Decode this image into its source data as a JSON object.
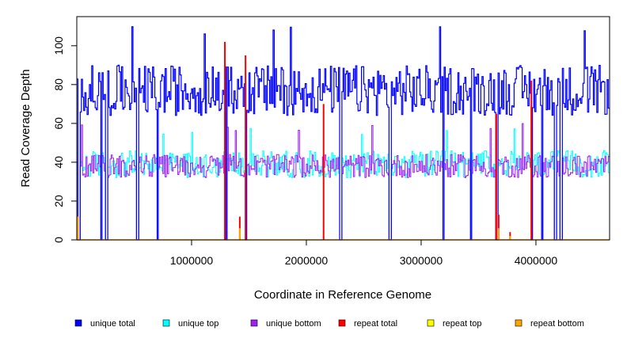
{
  "chart_data": {
    "type": "line",
    "title": "",
    "xlabel": "Coordinate in Reference Genome",
    "ylabel": "Read Coverage Depth",
    "xlim": [
      0,
      4641652
    ],
    "ylim": [
      0,
      115
    ],
    "x_ticks": [
      1000000,
      2000000,
      3000000,
      4000000
    ],
    "x_tick_labels": [
      "1000000",
      "2000000",
      "3000000",
      "4000000"
    ],
    "y_ticks": [
      0,
      20,
      40,
      60,
      80,
      100
    ],
    "y_tick_labels": [
      "0",
      "20",
      "40",
      "60",
      "80",
      "100"
    ],
    "legend_position": "bottom",
    "bin_size": 10000,
    "series": [
      {
        "name": "unique total",
        "color": "#0000ff",
        "baseline": 77,
        "spread": 13,
        "step": 0.5,
        "min": 57,
        "peak": 110
      },
      {
        "name": "unique top",
        "color": "#00ffff",
        "baseline": 39,
        "spread": 7,
        "step": 0.5,
        "min": 22,
        "peak": 58
      },
      {
        "name": "unique bottom",
        "color": "#a020f0",
        "baseline": 38,
        "spread": 6,
        "step": 0.5,
        "min": 14,
        "peak": 60
      },
      {
        "name": "repeat total",
        "color": "#ff0000",
        "baseline": 0
      },
      {
        "name": "repeat top",
        "color": "#ffff00",
        "baseline": 0
      },
      {
        "name": "repeat bottom",
        "color": "#ffa500",
        "baseline": 0
      }
    ],
    "coverage_gaps": [
      15000,
      210000,
      255000,
      525000,
      700000,
      1300000,
      1470000,
      2295000,
      2725000,
      3190000,
      3430000,
      3655000,
      3960000,
      4050000,
      4165000,
      4215000
    ],
    "repeat_spikes": [
      {
        "x": 10000,
        "total": 12,
        "bottom": 12
      },
      {
        "x": 1290000,
        "total": 102,
        "bottom": 0
      },
      {
        "x": 1420000,
        "total": 12,
        "bottom": 6
      },
      {
        "x": 1470000,
        "total": 95,
        "bottom": 0
      },
      {
        "x": 2150000,
        "total": 70,
        "bottom": 0
      },
      {
        "x": 3655000,
        "total": 65,
        "bottom": 0
      },
      {
        "x": 3675000,
        "total": 13,
        "bottom": 6
      },
      {
        "x": 3775000,
        "total": 4,
        "bottom": 2
      },
      {
        "x": 3960000,
        "total": 82,
        "bottom": 0
      }
    ]
  }
}
